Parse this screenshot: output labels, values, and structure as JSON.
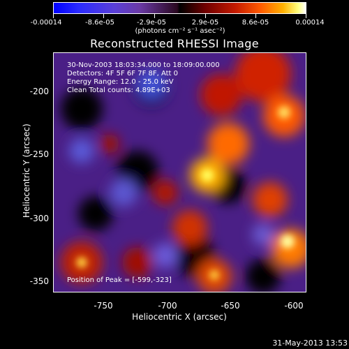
{
  "colorbar": {
    "tick_labels": [
      "-0.00014",
      "-8.6e-05",
      "-2.9e-05",
      "2.9e-05",
      "8.6e-05",
      "0.00014"
    ],
    "units": "(photons cm⁻² s⁻¹ asec⁻²)"
  },
  "image": {
    "title": "Reconstructed RHESSI Image",
    "annotations": {
      "time": "30-Nov-2003 18:03:34.000 to 18:09:00.000",
      "detectors": "Detectors: 4F 5F 6F 7F 8F, Att 0",
      "energy": "Energy Range: 12.0 - 25.0 keV",
      "clean": "Clean     Total counts: 4.89E+03",
      "peak": "Position of Peak = [-599,-323]"
    },
    "xlabel": "Heliocentric X (arcsec)",
    "ylabel": "Heliocentric Y (arcsec)",
    "xticks": [
      "-750",
      "-700",
      "-650",
      "-600"
    ],
    "yticks": [
      "-200",
      "-250",
      "-300",
      "-350"
    ],
    "xrange": [
      -787,
      -593
    ],
    "yrange": [
      -368,
      -184
    ]
  },
  "footer": {
    "date": "31-May-2013 13:53"
  },
  "colors": {
    "background": "#000000",
    "foreground": "#ffffff"
  }
}
